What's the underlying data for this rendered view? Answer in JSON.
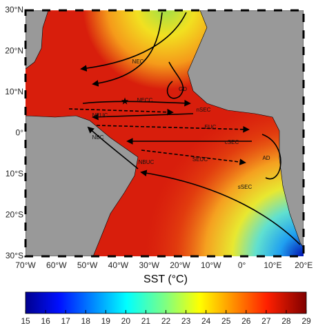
{
  "map": {
    "lat_labels": [
      "30°N",
      "20°N",
      "10°N",
      "0°",
      "10°S",
      "20°S",
      "30°S"
    ],
    "lon_labels": [
      "70°W",
      "60°W",
      "50°W",
      "40°W",
      "30°W",
      "20°W",
      "10°W",
      "0°",
      "10°E",
      "20°E"
    ],
    "currents": [
      "NEC",
      "GD",
      "NECC",
      "nSEC",
      "NEUC",
      "EUC",
      "cSEC",
      "NBC",
      "SEUC",
      "AD",
      "NBUC",
      "sSEC"
    ],
    "colorbar": {
      "title": "SST (°C)",
      "range": [
        15,
        29
      ],
      "ticks": [
        15,
        16,
        17,
        18,
        19,
        20,
        21,
        22,
        23,
        24,
        25,
        26,
        27,
        28,
        29
      ]
    }
  }
}
